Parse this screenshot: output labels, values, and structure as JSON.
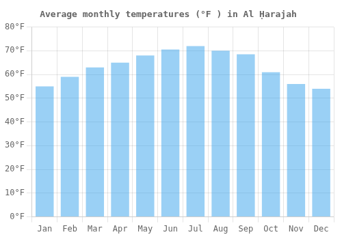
{
  "chart_data": {
    "type": "bar",
    "title": "Average monthly temperatures (°F ) in Al Ḥarajah",
    "categories": [
      "Jan",
      "Feb",
      "Mar",
      "Apr",
      "May",
      "Jun",
      "Jul",
      "Aug",
      "Sep",
      "Oct",
      "Nov",
      "Dec"
    ],
    "values": [
      55,
      59,
      63,
      65,
      68,
      70.5,
      72,
      70,
      68.5,
      61,
      56,
      54
    ],
    "ylim": [
      0,
      80
    ],
    "yticks": [
      {
        "value": 0,
        "label": "0°F"
      },
      {
        "value": 10,
        "label": "10°F"
      },
      {
        "value": 20,
        "label": "20°F"
      },
      {
        "value": 30,
        "label": "30°F"
      },
      {
        "value": 40,
        "label": "40°F"
      },
      {
        "value": 50,
        "label": "50°F"
      },
      {
        "value": 60,
        "label": "60°F"
      },
      {
        "value": 70,
        "label": "70°F"
      },
      {
        "value": 80,
        "label": "80°F"
      }
    ],
    "grid": true
  }
}
